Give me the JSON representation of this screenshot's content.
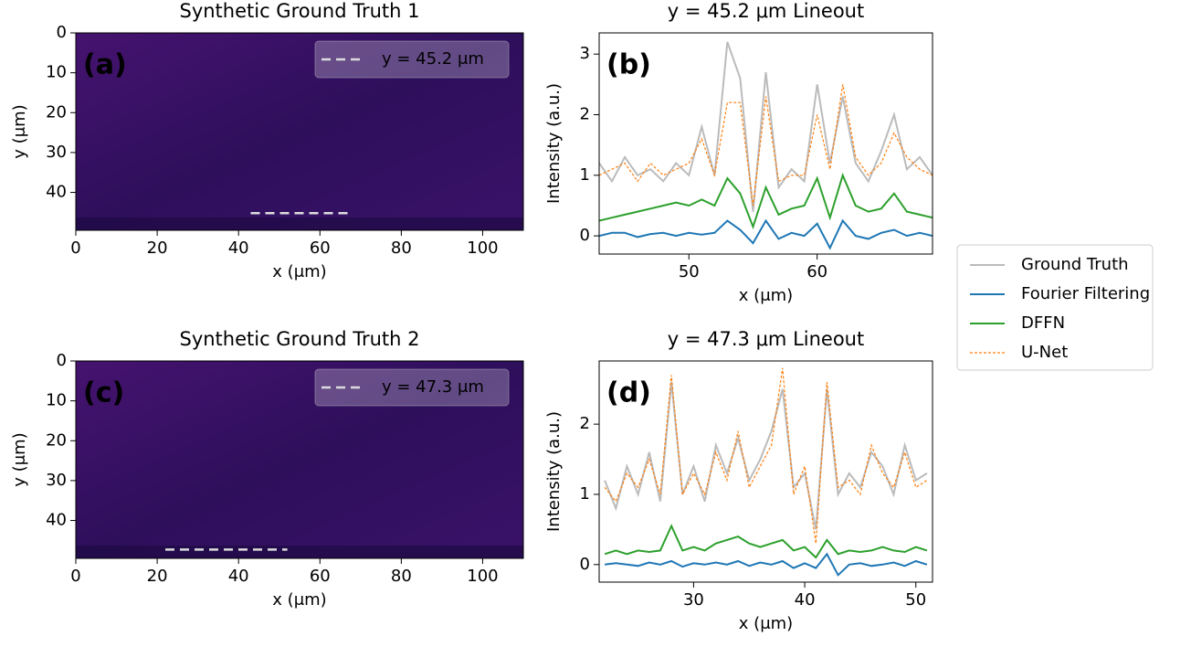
{
  "chart_data": [
    {
      "type": "image",
      "title": "Synthetic Ground Truth 1",
      "panel_label": "(a)",
      "x_label": "x (μm)",
      "y_label": "y (μm)",
      "xlim": [
        0,
        110
      ],
      "ylim": [
        49.5,
        0
      ],
      "xticks": [
        0,
        20,
        40,
        60,
        80,
        100
      ],
      "yticks": [
        0,
        10,
        20,
        30,
        40
      ],
      "legend": "upper right",
      "series": [
        {
          "name": "y = 45.2 μm",
          "color": "#dcdcdc",
          "x": [
            43,
            68
          ],
          "values": [
            45.2,
            45.2
          ]
        }
      ]
    },
    {
      "type": "line",
      "title": "y = 45.2 μm Lineout",
      "panel_label": "(b)",
      "x_label": "x (μm)",
      "y_label": "Intensity (a.u.)",
      "xlim": [
        43,
        69
      ],
      "ylim": [
        -0.3,
        3.35
      ],
      "xticks": [
        50,
        60
      ],
      "yticks": [
        0,
        1,
        2,
        3
      ],
      "legend": "outside right",
      "x": [
        43,
        44,
        45,
        46,
        47,
        48,
        49,
        50,
        51,
        52,
        53,
        54,
        55,
        56,
        57,
        58,
        59,
        60,
        61,
        62,
        63,
        64,
        65,
        66,
        67,
        68,
        69
      ],
      "series": [
        {
          "name": "Ground Truth",
          "color": "#bbbbbb",
          "values": [
            1.2,
            0.9,
            1.3,
            1.0,
            1.1,
            0.9,
            1.2,
            1.0,
            1.8,
            1.0,
            3.2,
            2.6,
            0.4,
            2.7,
            0.8,
            1.1,
            0.9,
            2.5,
            1.2,
            2.3,
            1.2,
            0.9,
            1.4,
            2.0,
            1.1,
            1.3,
            1.0
          ]
        },
        {
          "name": "Fourier Filtering",
          "color": "#1f77b4",
          "values": [
            0.0,
            0.05,
            0.05,
            -0.02,
            0.03,
            0.05,
            0.0,
            0.05,
            0.02,
            0.05,
            0.25,
            0.1,
            -0.12,
            0.25,
            -0.05,
            0.05,
            0.0,
            0.2,
            -0.2,
            0.25,
            0.0,
            -0.05,
            0.05,
            0.1,
            0.0,
            0.05,
            0.0
          ]
        },
        {
          "name": "DFFN",
          "color": "#2ca02c",
          "values": [
            0.25,
            0.3,
            0.35,
            0.4,
            0.45,
            0.5,
            0.55,
            0.5,
            0.6,
            0.5,
            0.95,
            0.7,
            0.15,
            0.8,
            0.35,
            0.45,
            0.5,
            0.95,
            0.3,
            1.0,
            0.5,
            0.4,
            0.45,
            0.7,
            0.4,
            0.35,
            0.3
          ]
        },
        {
          "name": "U-Net",
          "color": "#ff7f0e",
          "dashed": true,
          "values": [
            1.0,
            1.1,
            1.2,
            0.9,
            1.2,
            1.0,
            1.1,
            1.2,
            1.6,
            1.0,
            2.2,
            2.2,
            0.5,
            2.3,
            0.9,
            1.0,
            1.0,
            2.0,
            1.1,
            2.5,
            1.3,
            1.0,
            1.2,
            1.7,
            1.3,
            1.1,
            1.0
          ]
        }
      ]
    },
    {
      "type": "image",
      "title": "Synthetic Ground Truth 2",
      "panel_label": "(c)",
      "x_label": "x (μm)",
      "y_label": "y (μm)",
      "xlim": [
        0,
        110
      ],
      "ylim": [
        49.5,
        0
      ],
      "xticks": [
        0,
        20,
        40,
        60,
        80,
        100
      ],
      "yticks": [
        0,
        10,
        20,
        30,
        40
      ],
      "legend": "upper right",
      "series": [
        {
          "name": "y = 47.3 μm",
          "color": "#dcdcdc",
          "x": [
            22,
            52
          ],
          "values": [
            47.3,
            47.3
          ]
        }
      ]
    },
    {
      "type": "line",
      "title": "y = 47.3 μm Lineout",
      "panel_label": "(d)",
      "x_label": "x (μm)",
      "y_label": "Intensity (a.u.)",
      "xlim": [
        21.5,
        51.5
      ],
      "ylim": [
        -0.25,
        2.9
      ],
      "xticks": [
        30,
        40,
        50
      ],
      "yticks": [
        0,
        1,
        2
      ],
      "x": [
        22,
        23,
        24,
        25,
        26,
        27,
        28,
        29,
        30,
        31,
        32,
        33,
        34,
        35,
        36,
        37,
        38,
        39,
        40,
        41,
        42,
        43,
        44,
        45,
        46,
        47,
        48,
        49,
        50,
        51
      ],
      "series": [
        {
          "name": "Ground Truth",
          "color": "#bbbbbb",
          "values": [
            1.2,
            0.8,
            1.4,
            1.0,
            1.6,
            0.9,
            2.6,
            1.0,
            1.4,
            0.9,
            1.7,
            1.3,
            1.8,
            1.2,
            1.5,
            1.9,
            2.5,
            1.1,
            1.3,
            0.5,
            2.5,
            1.0,
            1.3,
            1.1,
            1.6,
            1.4,
            1.0,
            1.7,
            1.2,
            1.3
          ]
        },
        {
          "name": "Fourier Filtering",
          "color": "#1f77b4",
          "values": [
            0.0,
            0.02,
            0.0,
            -0.02,
            0.03,
            0.0,
            0.05,
            -0.03,
            0.02,
            0.0,
            0.03,
            0.0,
            0.05,
            -0.02,
            0.03,
            0.0,
            0.05,
            -0.05,
            0.02,
            -0.05,
            0.15,
            -0.15,
            0.0,
            0.02,
            -0.02,
            0.0,
            0.03,
            -0.02,
            0.05,
            0.0
          ]
        },
        {
          "name": "DFFN",
          "color": "#2ca02c",
          "values": [
            0.15,
            0.2,
            0.15,
            0.2,
            0.18,
            0.2,
            0.55,
            0.2,
            0.25,
            0.2,
            0.3,
            0.35,
            0.4,
            0.3,
            0.25,
            0.3,
            0.35,
            0.2,
            0.25,
            0.1,
            0.35,
            0.15,
            0.2,
            0.18,
            0.2,
            0.25,
            0.2,
            0.18,
            0.25,
            0.2
          ]
        },
        {
          "name": "U-Net",
          "color": "#ff7f0e",
          "dashed": true,
          "values": [
            1.1,
            0.9,
            1.3,
            1.1,
            1.5,
            1.0,
            2.7,
            1.0,
            1.3,
            1.0,
            1.6,
            1.2,
            1.9,
            1.1,
            1.4,
            1.7,
            2.8,
            1.0,
            1.4,
            0.3,
            2.6,
            1.1,
            1.2,
            1.0,
            1.7,
            1.3,
            1.1,
            1.6,
            1.1,
            1.2
          ]
        }
      ]
    }
  ]
}
